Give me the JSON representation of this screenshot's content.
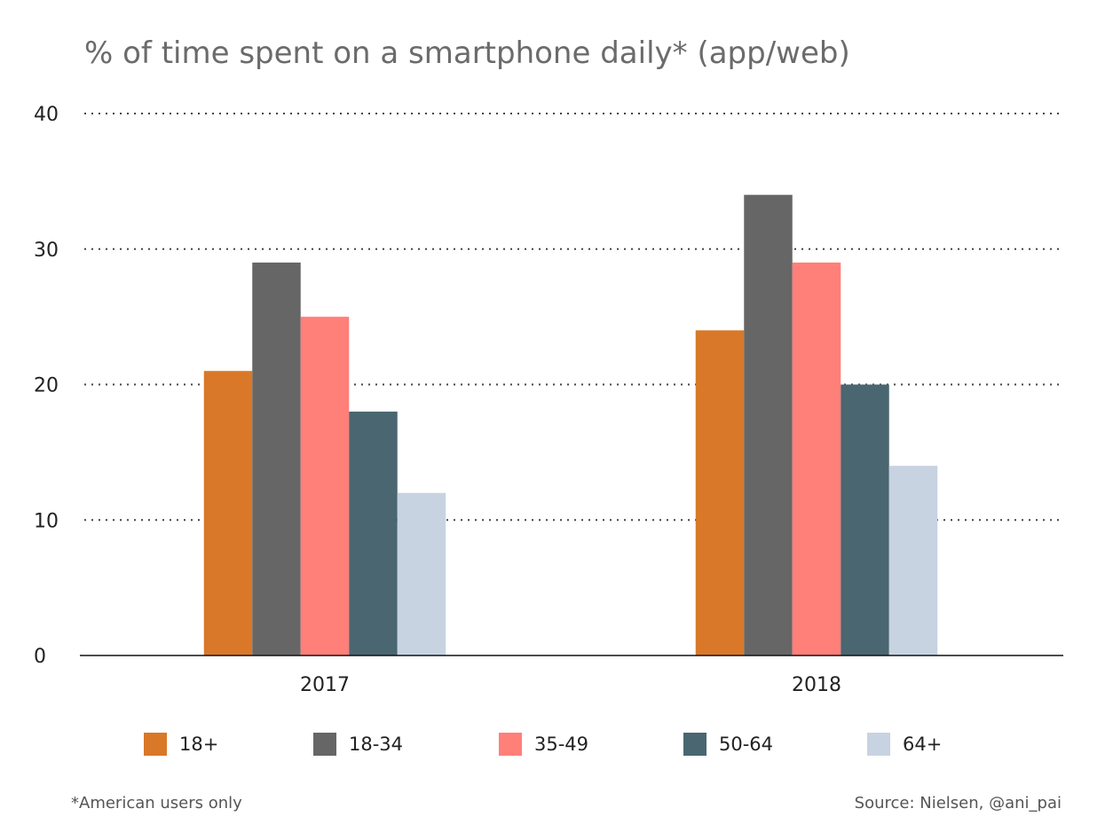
{
  "footnote": "*American users only",
  "source": "Source: Nielsen, @ani_pai",
  "chart_data": {
    "type": "bar",
    "title": "% of time spent on a smartphone daily* (app/web)",
    "xlabel": "",
    "ylabel": "",
    "categories": [
      "2017",
      "2018"
    ],
    "ylim": [
      0,
      40
    ],
    "yticks": [
      0,
      10,
      20,
      30,
      40
    ],
    "grid": true,
    "legend_position": "bottom",
    "series": [
      {
        "name": "18+",
        "color": "#D97828",
        "values": [
          21,
          24
        ]
      },
      {
        "name": "18-34",
        "color": "#666666",
        "values": [
          29,
          34
        ]
      },
      {
        "name": "35-49",
        "color": "#FF7F79",
        "values": [
          25,
          29
        ]
      },
      {
        "name": "50-64",
        "color": "#4A6670",
        "values": [
          18,
          20
        ]
      },
      {
        "name": "64+",
        "color": "#C8D3E2",
        "values": [
          12,
          14
        ]
      }
    ]
  }
}
